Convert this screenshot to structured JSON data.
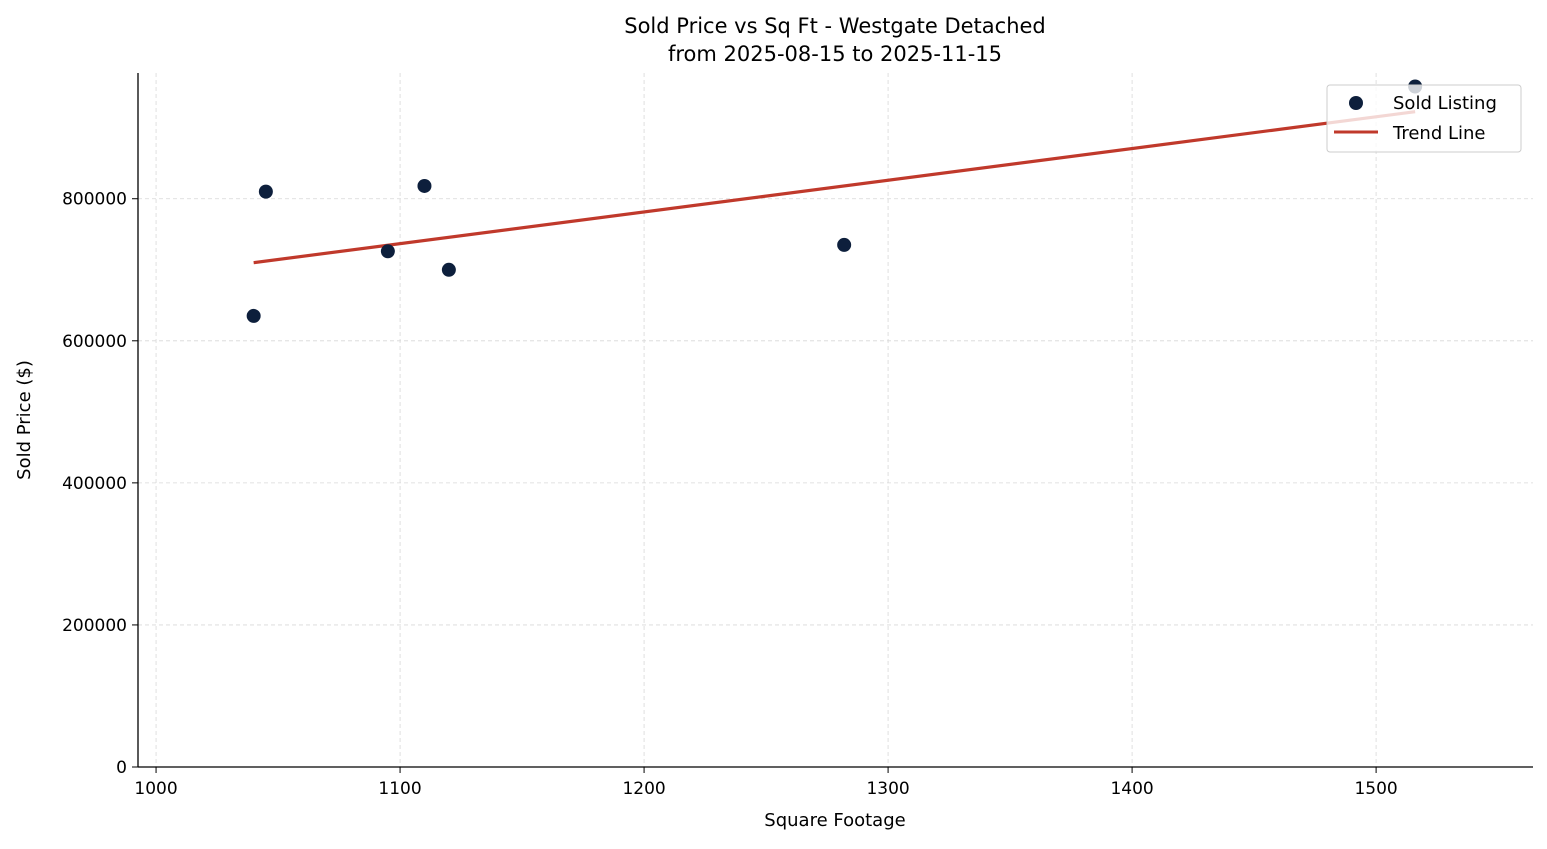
{
  "chart_data": {
    "type": "scatter",
    "title": "Sold Price vs Sq Ft - Westgate Detached",
    "subtitle": "from 2025-08-15 to 2025-11-15",
    "xlabel": "Square Footage",
    "ylabel": "Sold Price ($)",
    "xlim": [
      992.6,
      1564.3
    ],
    "ylim": [
      0,
      977000
    ],
    "xticks": [
      1000,
      1100,
      1200,
      1300,
      1400,
      1500
    ],
    "yticks": [
      0,
      200000,
      400000,
      600000,
      800000
    ],
    "grid": true,
    "legend_position": "top-right",
    "series": [
      {
        "name": "Sold Listing",
        "kind": "scatter",
        "color": "#0d1f3c",
        "points": [
          {
            "x": 1040,
            "y": 635000
          },
          {
            "x": 1045,
            "y": 810000
          },
          {
            "x": 1095,
            "y": 726000
          },
          {
            "x": 1110,
            "y": 818000
          },
          {
            "x": 1120,
            "y": 700000
          },
          {
            "x": 1282,
            "y": 735000
          },
          {
            "x": 1516,
            "y": 958000
          }
        ]
      },
      {
        "name": "Trend Line",
        "kind": "line",
        "color": "#c0392b",
        "points": [
          {
            "x": 1040,
            "y": 710000
          },
          {
            "x": 1516,
            "y": 922500
          }
        ]
      }
    ]
  }
}
